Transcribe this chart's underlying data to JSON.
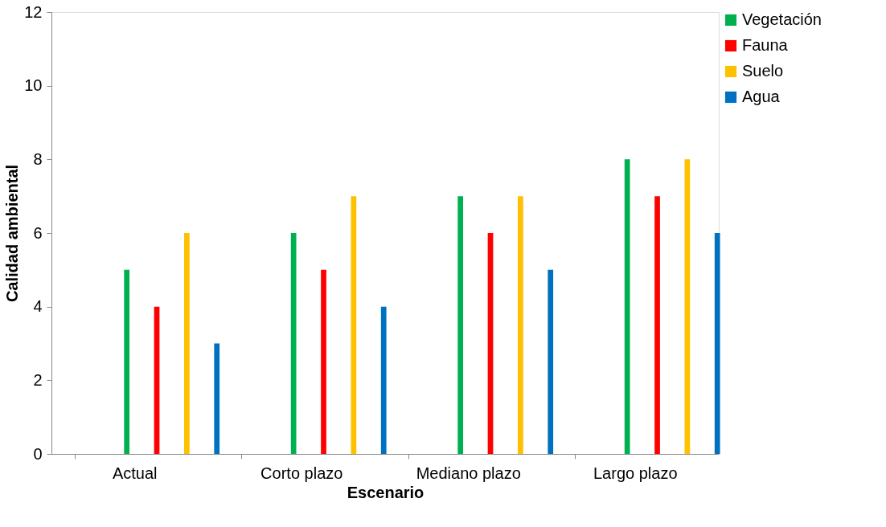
{
  "chart_data": {
    "type": "bar",
    "xlabel": "Escenario",
    "ylabel": "Calidad ambiental",
    "categories": [
      "Actual",
      "Corto plazo",
      "Mediano plazo",
      "Largo plazo"
    ],
    "series": [
      {
        "name": "Vegetación",
        "color": "#00b050",
        "values": [
          5,
          6,
          7,
          8
        ]
      },
      {
        "name": "Fauna",
        "color": "#ff0000",
        "values": [
          4,
          5,
          6,
          7
        ]
      },
      {
        "name": "Suelo",
        "color": "#ffc000",
        "values": [
          6,
          7,
          7,
          8
        ]
      },
      {
        "name": "Agua",
        "color": "#0070c0",
        "values": [
          3,
          4,
          5,
          6
        ]
      }
    ],
    "ylim": [
      0,
      12
    ],
    "yticks": [
      0,
      2,
      4,
      6,
      8,
      10,
      12
    ],
    "grid": false,
    "legend": "top right"
  }
}
